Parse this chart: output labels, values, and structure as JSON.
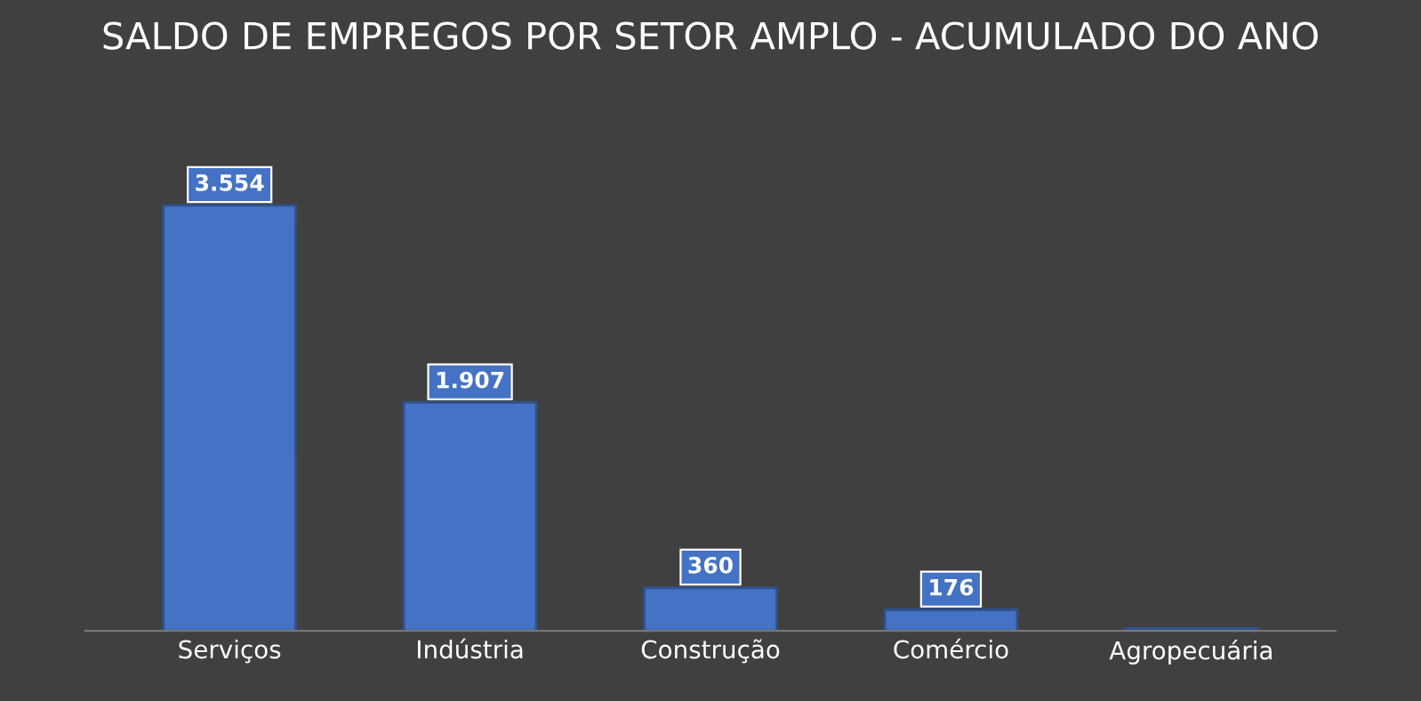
{
  "chart_data": {
    "type": "bar",
    "title": "SALDO DE EMPREGOS POR SETOR AMPLO - ACUMULADO DO ANO",
    "categories": [
      "Serviços",
      "Indústria",
      "Construção",
      "Comércio",
      "Agropecuária"
    ],
    "values": [
      3554,
      1907,
      360,
      176,
      20
    ],
    "value_labels": [
      "3.554",
      "1.907",
      "360",
      "176",
      null
    ],
    "color": "#4472c4",
    "grid": false,
    "legend": false
  }
}
